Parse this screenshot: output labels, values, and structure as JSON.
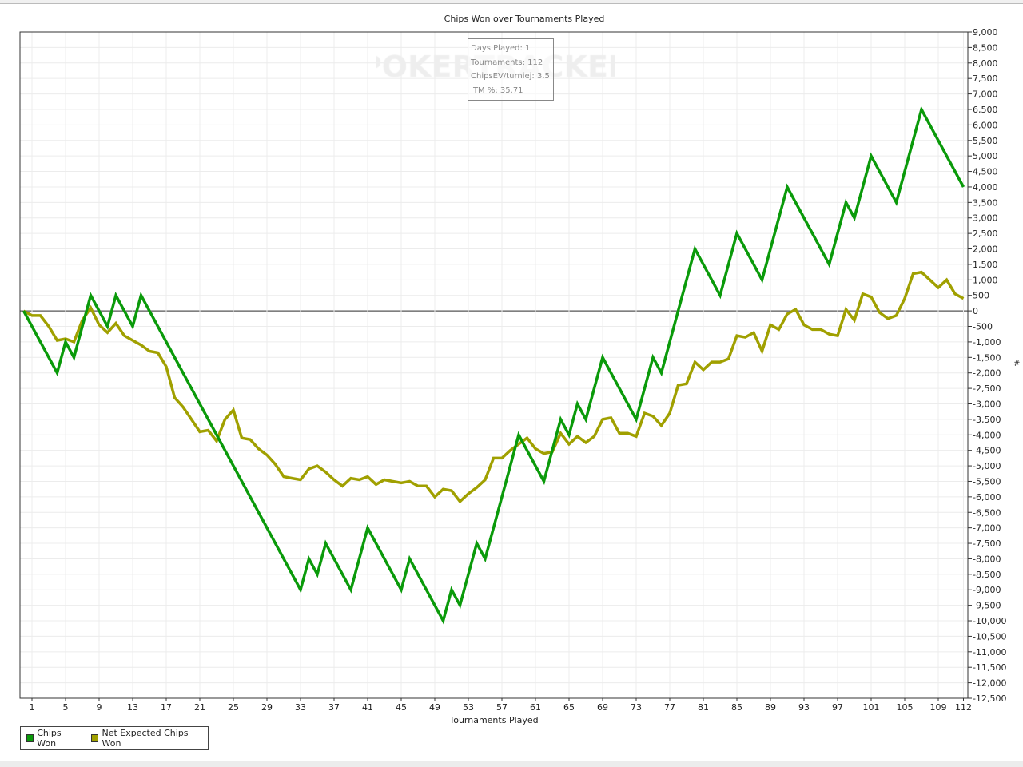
{
  "chart_data": {
    "type": "line",
    "title": "Chips Won over Tournaments Played",
    "xlabel": "Tournaments Played",
    "ylabel": "",
    "xlim": [
      0,
      112
    ],
    "ylim": [
      -12500,
      9000
    ],
    "x_ticks": [
      1,
      5,
      9,
      13,
      17,
      21,
      25,
      29,
      33,
      37,
      41,
      45,
      49,
      53,
      57,
      61,
      65,
      69,
      73,
      77,
      81,
      85,
      89,
      93,
      97,
      101,
      105,
      109,
      112
    ],
    "y_ticks": [
      9000,
      8500,
      8000,
      7500,
      7000,
      6500,
      6000,
      5500,
      5000,
      4500,
      4000,
      3500,
      3000,
      2500,
      2000,
      1500,
      1000,
      500,
      0,
      -500,
      -1000,
      -1500,
      -2000,
      -2500,
      -3000,
      -3500,
      -4000,
      -4500,
      -5000,
      -5500,
      -6000,
      -6500,
      -7000,
      -7500,
      -8000,
      -8500,
      -9000,
      -9500,
      -10000,
      -10500,
      -11000,
      -11500,
      -12000,
      -12500
    ],
    "y_tick_labels": [
      "9,000",
      "8,500",
      "8,000",
      "7,500",
      "7,000",
      "6,500",
      "6,000",
      "5,500",
      "5,000",
      "4,500",
      "4,000",
      "3,500",
      "3,000",
      "2,500",
      "2,000",
      "1,500",
      "1,000",
      "500",
      "0",
      "-500",
      "-1,000",
      "-1,500",
      "-2,000",
      "-2,500",
      "-3,000",
      "-3,500",
      "-4,000",
      "-4,500",
      "-5,000",
      "-5,500",
      "-6,000",
      "-6,500",
      "-7,000",
      "-7,500",
      "-8,000",
      "-8,500",
      "-9,000",
      "-9,500",
      "-10,000",
      "-10,500",
      "-11,000",
      "-11,500",
      "-12,000",
      "-12,500"
    ],
    "grid": true,
    "legend_placement": "bottom-left",
    "series": [
      {
        "name": "Chips Won",
        "color": "#0a9a0a",
        "points": [
          [
            0,
            0
          ],
          [
            4,
            -2000
          ],
          [
            5,
            -1000
          ],
          [
            6,
            -1500
          ],
          [
            8,
            500
          ],
          [
            10,
            -500
          ],
          [
            11,
            500
          ],
          [
            13,
            -500
          ],
          [
            14,
            500
          ],
          [
            33,
            -9000
          ],
          [
            34,
            -8000
          ],
          [
            35,
            -8500
          ],
          [
            36,
            -7500
          ],
          [
            39,
            -9000
          ],
          [
            41,
            -7000
          ],
          [
            45,
            -9000
          ],
          [
            46,
            -8000
          ],
          [
            50,
            -10000
          ],
          [
            51,
            -9000
          ],
          [
            52,
            -9500
          ],
          [
            54,
            -7500
          ],
          [
            55,
            -8000
          ],
          [
            59,
            -4000
          ],
          [
            62,
            -5500
          ],
          [
            64,
            -3500
          ],
          [
            65,
            -4000
          ],
          [
            66,
            -3000
          ],
          [
            67,
            -3500
          ],
          [
            69,
            -1500
          ],
          [
            73,
            -3500
          ],
          [
            75,
            -1500
          ],
          [
            76,
            -2000
          ],
          [
            80,
            2000
          ],
          [
            83,
            500
          ],
          [
            85,
            2500
          ],
          [
            88,
            1000
          ],
          [
            91,
            4000
          ],
          [
            96,
            1500
          ],
          [
            98,
            3500
          ],
          [
            99,
            3000
          ],
          [
            101,
            5000
          ],
          [
            104,
            3500
          ],
          [
            107,
            6500
          ],
          [
            112,
            4000
          ]
        ]
      },
      {
        "name": "Net Expected Chips Won",
        "color": "#a0a000",
        "values": [
          0,
          -150,
          -150,
          -500,
          -950,
          -900,
          -1000,
          -300,
          100,
          -450,
          -700,
          -400,
          -800,
          -950,
          -1100,
          -1300,
          -1350,
          -1800,
          -2800,
          -3100,
          -3500,
          -3900,
          -3850,
          -4200,
          -3500,
          -3200,
          -4100,
          -4150,
          -4450,
          -4650,
          -4950,
          -5350,
          -5400,
          -5450,
          -5100,
          -5000,
          -5200,
          -5450,
          -5650,
          -5400,
          -5450,
          -5350,
          -5600,
          -5450,
          -5500,
          -5550,
          -5500,
          -5650,
          -5650,
          -6000,
          -5750,
          -5800,
          -6150,
          -5900,
          -5700,
          -5450,
          -4750,
          -4750,
          -4500,
          -4300,
          -4100,
          -4450,
          -4600,
          -4550,
          -3950,
          -4300,
          -4050,
          -4250,
          -4050,
          -3500,
          -3450,
          -3950,
          -3950,
          -4050,
          -3300,
          -3400,
          -3700,
          -3300,
          -2400,
          -2350,
          -1650,
          -1900,
          -1650,
          -1650,
          -1550,
          -800,
          -850,
          -700,
          -1300,
          -450,
          -600,
          -100,
          50,
          -450,
          -600,
          -600,
          -750,
          -800,
          50,
          -300,
          550,
          450,
          -50,
          -250,
          -150,
          400,
          1200,
          1250,
          1000,
          750,
          1000,
          550,
          400
        ]
      }
    ]
  },
  "tooltip": {
    "lines": [
      "Days Played: 1",
      "Tournaments: 112",
      "ChipsEV/turniej: 3.5",
      "ITM %: 35.71"
    ]
  },
  "watermark": "POKERTRACKER",
  "legend": {
    "items": [
      "Chips Won",
      "Net Expected Chips Won"
    ]
  },
  "right_marker": "#"
}
